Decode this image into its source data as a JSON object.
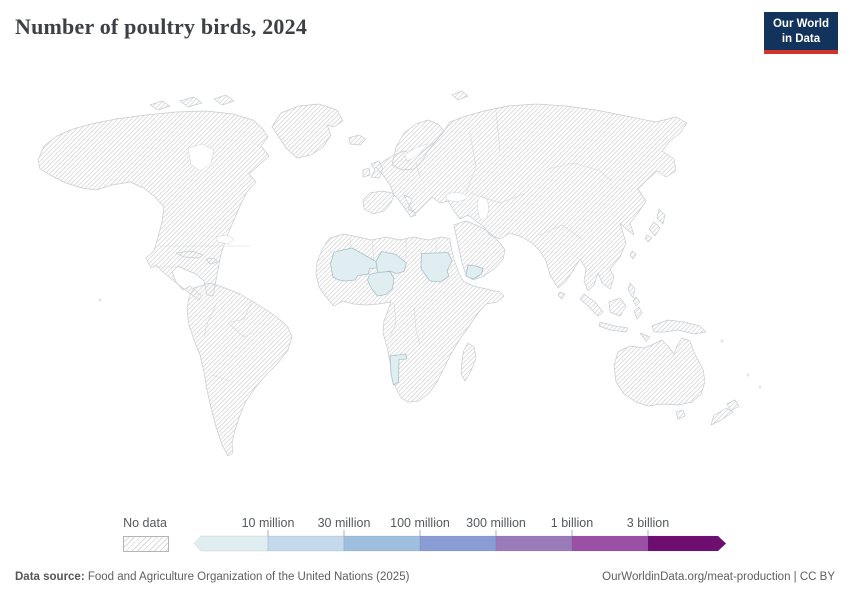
{
  "header": {
    "title": "Number of poultry birds, 2024",
    "logo": {
      "line1": "Our World",
      "line2": "in Data",
      "bg_color": "#12335c",
      "accent_color": "#d0342c"
    }
  },
  "legend": {
    "no_data_label": "No data",
    "bins": [
      {
        "color": "#e0eef1",
        "boundary_label": "10 million"
      },
      {
        "color": "#c4d9eb",
        "boundary_label": "30 million"
      },
      {
        "color": "#9fbfdf",
        "boundary_label": "100 million"
      },
      {
        "color": "#8a9cd4",
        "boundary_label": "300 million"
      },
      {
        "color": "#9a7bba",
        "boundary_label": "1 billion"
      },
      {
        "color": "#9c50a5",
        "boundary_label": "3 billion"
      },
      {
        "color": "#6d0e70",
        "boundary_label": ""
      }
    ]
  },
  "map": {
    "no_data_pattern": "diagonal-hatch",
    "hatch_color": "#dadada",
    "coast_color": "#c6ccd2",
    "highlight_fill": "#e0eef1",
    "highlight_stroke": "#a6c0cb"
  },
  "chart_data": {
    "type": "choropleth-map",
    "title": "Number of poultry birds, 2024",
    "year": 2024,
    "unit": "poultry birds",
    "legend_position": "bottom",
    "scale_labels": [
      "10 million",
      "30 million",
      "100 million",
      "300 million",
      "1 billion",
      "3 billion"
    ],
    "highlighted_countries": [
      {
        "name": "Mali",
        "value_bin": "under 10 million"
      },
      {
        "name": "Niger",
        "value_bin": "under 10 million"
      },
      {
        "name": "Nigeria",
        "value_bin": "under 10 million"
      },
      {
        "name": "Sudan",
        "value_bin": "under 10 million"
      },
      {
        "name": "Yemen",
        "value_bin": "under 10 million"
      },
      {
        "name": "Namibia",
        "value_bin": "under 10 million"
      }
    ],
    "all_other_countries": "No data"
  },
  "footer": {
    "source_prefix": "Data source:",
    "source_text": " Food and Agriculture Organization of the United Nations (2025)",
    "credit": "OurWorldinData.org/meat-production | CC BY"
  }
}
